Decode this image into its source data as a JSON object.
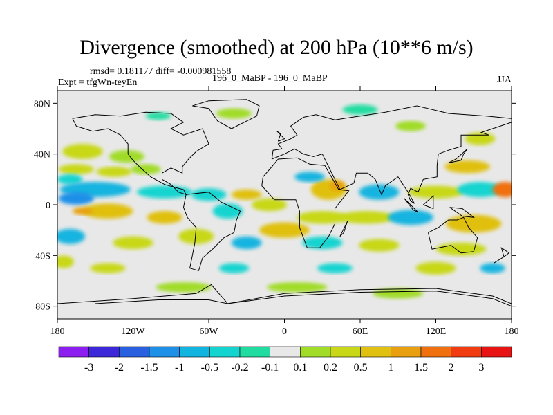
{
  "title": "Divergence (smoothed) at 200 hPa (10**6 m/s)",
  "stats": {
    "rmsd_label": "rmsd= 0.181177",
    "diff_label": "diff= -0.000981558"
  },
  "experiment": "Expt = tfgWn-teyEn",
  "case_label": "196_0_MaBP - 196_0_MaBP",
  "season": "JJA",
  "chart_data": {
    "type": "heatmap",
    "title": "Divergence (smoothed) at 200 hPa (10**6 m/s)",
    "x_axis": {
      "range": [
        -180,
        180
      ],
      "ticks": [
        -180,
        -120,
        -60,
        0,
        60,
        120,
        180
      ],
      "tick_labels": [
        "180",
        "120W",
        "60W",
        "0",
        "60E",
        "120E",
        "180"
      ]
    },
    "y_axis": {
      "range": [
        -90,
        90
      ],
      "ticks": [
        80,
        40,
        0,
        -40,
        -80
      ],
      "tick_labels": [
        "80N",
        "40N",
        "0",
        "40S",
        "80S"
      ]
    },
    "colorbar": {
      "levels": [
        "-3",
        "-2",
        "-1.5",
        "-1",
        "-0.5",
        "-0.2",
        "-0.1",
        "0.1",
        "0.2",
        "0.5",
        "1",
        "1.5",
        "2",
        "3"
      ],
      "colors": [
        "#8c1ff0",
        "#3c28d8",
        "#2860e0",
        "#1e90e8",
        "#12b4e0",
        "#14d4d0",
        "#20dca0",
        "#e8e8e8",
        "#a0dc28",
        "#c8d818",
        "#e0c010",
        "#e8a010",
        "#f07010",
        "#f03c10",
        "#e81414"
      ]
    },
    "blobs": [
      {
        "lon": -160,
        "lat": 42,
        "rx": 16,
        "ry": 6,
        "bin": 9
      },
      {
        "lon": -125,
        "lat": 38,
        "rx": 14,
        "ry": 5,
        "bin": 8
      },
      {
        "lon": -165,
        "lat": 28,
        "rx": 14,
        "ry": 4,
        "bin": 9
      },
      {
        "lon": -170,
        "lat": 20,
        "rx": 10,
        "ry": 4,
        "bin": 5
      },
      {
        "lon": -135,
        "lat": 26,
        "rx": 14,
        "ry": 4,
        "bin": 9
      },
      {
        "lon": -110,
        "lat": 28,
        "rx": 12,
        "ry": 4,
        "bin": 8
      },
      {
        "lon": -150,
        "lat": 12,
        "rx": 28,
        "ry": 6,
        "bin": 4
      },
      {
        "lon": -165,
        "lat": 5,
        "rx": 14,
        "ry": 5,
        "bin": 3
      },
      {
        "lon": -95,
        "lat": 10,
        "rx": 22,
        "ry": 5,
        "bin": 5
      },
      {
        "lon": -60,
        "lat": 8,
        "rx": 14,
        "ry": 5,
        "bin": 5
      },
      {
        "lon": -30,
        "lat": 8,
        "rx": 12,
        "ry": 4,
        "bin": 10
      },
      {
        "lon": -12,
        "lat": 0,
        "rx": 14,
        "ry": 5,
        "bin": 9
      },
      {
        "lon": 35,
        "lat": 12,
        "rx": 14,
        "ry": 8,
        "bin": 10
      },
      {
        "lon": 42,
        "lat": 15,
        "rx": 6,
        "ry": 4,
        "bin": 11
      },
      {
        "lon": 75,
        "lat": 10,
        "rx": 16,
        "ry": 6,
        "bin": 4
      },
      {
        "lon": 120,
        "lat": 10,
        "rx": 22,
        "ry": 5,
        "bin": 9
      },
      {
        "lon": 155,
        "lat": 12,
        "rx": 18,
        "ry": 6,
        "bin": 5
      },
      {
        "lon": 175,
        "lat": 12,
        "rx": 10,
        "ry": 6,
        "bin": 12
      },
      {
        "lon": -140,
        "lat": -5,
        "rx": 20,
        "ry": 6,
        "bin": 10
      },
      {
        "lon": -160,
        "lat": -5,
        "rx": 8,
        "ry": 3,
        "bin": 11
      },
      {
        "lon": -95,
        "lat": -10,
        "rx": 14,
        "ry": 5,
        "bin": 10
      },
      {
        "lon": -45,
        "lat": -5,
        "rx": 12,
        "ry": 6,
        "bin": 5
      },
      {
        "lon": 0,
        "lat": -20,
        "rx": 20,
        "ry": 6,
        "bin": 10
      },
      {
        "lon": 30,
        "lat": -10,
        "rx": 20,
        "ry": 5,
        "bin": 9
      },
      {
        "lon": 65,
        "lat": -10,
        "rx": 22,
        "ry": 5,
        "bin": 9
      },
      {
        "lon": 100,
        "lat": -10,
        "rx": 18,
        "ry": 6,
        "bin": 4
      },
      {
        "lon": 150,
        "lat": -15,
        "rx": 22,
        "ry": 7,
        "bin": 10
      },
      {
        "lon": -170,
        "lat": -25,
        "rx": 12,
        "ry": 6,
        "bin": 4
      },
      {
        "lon": -120,
        "lat": -30,
        "rx": 16,
        "ry": 5,
        "bin": 9
      },
      {
        "lon": -70,
        "lat": -25,
        "rx": 14,
        "ry": 6,
        "bin": 9
      },
      {
        "lon": -30,
        "lat": -30,
        "rx": 12,
        "ry": 5,
        "bin": 4
      },
      {
        "lon": 30,
        "lat": -30,
        "rx": 16,
        "ry": 5,
        "bin": 5
      },
      {
        "lon": 75,
        "lat": -32,
        "rx": 16,
        "ry": 5,
        "bin": 9
      },
      {
        "lon": 140,
        "lat": -35,
        "rx": 20,
        "ry": 5,
        "bin": 9
      },
      {
        "lon": -175,
        "lat": -45,
        "rx": 8,
        "ry": 5,
        "bin": 9
      },
      {
        "lon": -140,
        "lat": -50,
        "rx": 14,
        "ry": 4,
        "bin": 9
      },
      {
        "lon": -40,
        "lat": -50,
        "rx": 12,
        "ry": 4,
        "bin": 5
      },
      {
        "lon": 40,
        "lat": -50,
        "rx": 14,
        "ry": 4,
        "bin": 5
      },
      {
        "lon": 120,
        "lat": -50,
        "rx": 16,
        "ry": 5,
        "bin": 9
      },
      {
        "lon": 165,
        "lat": -50,
        "rx": 10,
        "ry": 4,
        "bin": 4
      },
      {
        "lon": -80,
        "lat": -65,
        "rx": 22,
        "ry": 4,
        "bin": 8
      },
      {
        "lon": 10,
        "lat": -65,
        "rx": 24,
        "ry": 4,
        "bin": 8
      },
      {
        "lon": 90,
        "lat": -70,
        "rx": 20,
        "ry": 4,
        "bin": 8
      },
      {
        "lon": -40,
        "lat": 72,
        "rx": 14,
        "ry": 4,
        "bin": 8
      },
      {
        "lon": 60,
        "lat": 75,
        "rx": 14,
        "ry": 4,
        "bin": 6
      },
      {
        "lon": 100,
        "lat": 62,
        "rx": 12,
        "ry": 4,
        "bin": 8
      },
      {
        "lon": -100,
        "lat": 70,
        "rx": 10,
        "ry": 3,
        "bin": 6
      },
      {
        "lon": 155,
        "lat": 52,
        "rx": 12,
        "ry": 5,
        "bin": 9
      },
      {
        "lon": 145,
        "lat": 30,
        "rx": 18,
        "ry": 5,
        "bin": 10
      },
      {
        "lon": 20,
        "lat": 22,
        "rx": 12,
        "ry": 4,
        "bin": 4
      }
    ],
    "coastlines": [
      [
        [
          -168,
          68
        ],
        [
          -150,
          71
        ],
        [
          -130,
          70
        ],
        [
          -110,
          73
        ],
        [
          -90,
          72
        ],
        [
          -80,
          65
        ],
        [
          -90,
          60
        ],
        [
          -80,
          55
        ],
        [
          -65,
          60
        ],
        [
          -60,
          48
        ],
        [
          -70,
          42
        ],
        [
          -76,
          36
        ],
        [
          -81,
          30
        ],
        [
          -81,
          25
        ],
        [
          -90,
          29
        ],
        [
          -97,
          25
        ],
        [
          -97,
          20
        ],
        [
          -90,
          16
        ],
        [
          -84,
          10
        ],
        [
          -78,
          8
        ],
        [
          -80,
          12
        ],
        [
          -88,
          14
        ],
        [
          -95,
          16
        ],
        [
          -106,
          22
        ],
        [
          -115,
          30
        ],
        [
          -120,
          35
        ],
        [
          -124,
          40
        ],
        [
          -124,
          48
        ],
        [
          -130,
          55
        ],
        [
          -140,
          60
        ],
        [
          -152,
          58
        ],
        [
          -165,
          62
        ],
        [
          -168,
          68
        ]
      ],
      [
        [
          -78,
          8
        ],
        [
          -60,
          10
        ],
        [
          -50,
          2
        ],
        [
          -35,
          -5
        ],
        [
          -38,
          -12
        ],
        [
          -40,
          -22
        ],
        [
          -48,
          -26
        ],
        [
          -57,
          -35
        ],
        [
          -65,
          -42
        ],
        [
          -68,
          -52
        ],
        [
          -75,
          -50
        ],
        [
          -73,
          -40
        ],
        [
          -71,
          -30
        ],
        [
          -70,
          -18
        ],
        [
          -77,
          -10
        ],
        [
          -80,
          -2
        ],
        [
          -78,
          8
        ]
      ],
      [
        [
          -18,
          15
        ],
        [
          -17,
          22
        ],
        [
          -10,
          30
        ],
        [
          -5,
          36
        ],
        [
          10,
          37
        ],
        [
          20,
          32
        ],
        [
          32,
          31
        ],
        [
          43,
          12
        ],
        [
          51,
          11
        ],
        [
          40,
          -3
        ],
        [
          40,
          -15
        ],
        [
          35,
          -25
        ],
        [
          28,
          -34
        ],
        [
          18,
          -34
        ],
        [
          12,
          -18
        ],
        [
          12,
          -5
        ],
        [
          9,
          4
        ],
        [
          -8,
          4
        ],
        [
          -18,
          15
        ]
      ],
      [
        [
          -10,
          36
        ],
        [
          -9,
          43
        ],
        [
          -2,
          44
        ],
        [
          -5,
          48
        ],
        [
          5,
          52
        ],
        [
          10,
          55
        ],
        [
          5,
          62
        ],
        [
          15,
          69
        ],
        [
          25,
          71
        ],
        [
          40,
          67
        ],
        [
          60,
          70
        ],
        [
          80,
          73
        ],
        [
          105,
          78
        ],
        [
          130,
          72
        ],
        [
          160,
          70
        ],
        [
          180,
          68
        ],
        [
          180,
          65
        ],
        [
          165,
          60
        ],
        [
          156,
          57
        ],
        [
          162,
          55
        ],
        [
          140,
          55
        ],
        [
          140,
          46
        ],
        [
          130,
          43
        ],
        [
          122,
          40
        ],
        [
          121,
          31
        ],
        [
          121,
          22
        ],
        [
          110,
          20
        ],
        [
          106,
          10
        ],
        [
          100,
          13
        ],
        [
          98,
          8
        ],
        [
          100,
          3
        ],
        [
          103,
          1
        ],
        [
          98,
          10
        ],
        [
          94,
          16
        ],
        [
          90,
          22
        ],
        [
          80,
          15
        ],
        [
          77,
          8
        ],
        [
          72,
          20
        ],
        [
          66,
          25
        ],
        [
          57,
          25
        ],
        [
          55,
          17
        ],
        [
          44,
          12
        ],
        [
          35,
          30
        ],
        [
          30,
          40
        ],
        [
          23,
          38
        ],
        [
          15,
          40
        ],
        [
          8,
          44
        ],
        [
          0,
          40
        ],
        [
          -10,
          36
        ]
      ],
      [
        [
          114,
          -22
        ],
        [
          122,
          -18
        ],
        [
          130,
          -12
        ],
        [
          137,
          -12
        ],
        [
          142,
          -10
        ],
        [
          146,
          -18
        ],
        [
          153,
          -26
        ],
        [
          150,
          -37
        ],
        [
          140,
          -38
        ],
        [
          132,
          -32
        ],
        [
          117,
          -35
        ],
        [
          114,
          -22
        ]
      ],
      [
        [
          -73,
          78
        ],
        [
          -60,
          82
        ],
        [
          -30,
          83
        ],
        [
          -20,
          78
        ],
        [
          -22,
          70
        ],
        [
          -42,
          60
        ],
        [
          -53,
          66
        ],
        [
          -60,
          76
        ],
        [
          -73,
          78
        ]
      ],
      [
        [
          -180,
          -78
        ],
        [
          -120,
          -74
        ],
        [
          -70,
          -70
        ],
        [
          -58,
          -63
        ],
        [
          -45,
          -78
        ],
        [
          0,
          -70
        ],
        [
          60,
          -67
        ],
        [
          120,
          -66
        ],
        [
          165,
          -72
        ],
        [
          180,
          -78
        ]
      ],
      [
        [
          44,
          -25
        ],
        [
          49,
          -15
        ],
        [
          50,
          -13
        ],
        [
          47,
          -22
        ],
        [
          44,
          -25
        ]
      ],
      [
        [
          -5,
          50
        ],
        [
          -3,
          56
        ],
        [
          -6,
          58
        ],
        [
          0,
          52
        ],
        [
          -5,
          50
        ]
      ],
      [
        [
          140,
          35
        ],
        [
          142,
          40
        ],
        [
          145,
          44
        ],
        [
          136,
          36
        ],
        [
          130,
          33
        ],
        [
          140,
          35
        ]
      ],
      [
        [
          95,
          5
        ],
        [
          106,
          -6
        ],
        [
          102,
          -4
        ],
        [
          95,
          5
        ]
      ],
      [
        [
          110,
          0
        ],
        [
          118,
          7
        ],
        [
          118,
          -3
        ],
        [
          110,
          0
        ]
      ],
      [
        [
          131,
          -2
        ],
        [
          141,
          -3
        ],
        [
          150,
          -10
        ],
        [
          141,
          -9
        ],
        [
          131,
          -2
        ]
      ],
      [
        [
          -150,
          -78
        ],
        [
          -100,
          -75
        ],
        [
          -60,
          -75
        ],
        [
          -45,
          -78
        ],
        [
          0,
          -72
        ],
        [
          60,
          -69
        ],
        [
          120,
          -68
        ],
        [
          165,
          -74
        ],
        [
          180,
          -80
        ]
      ],
      [
        [
          166,
          -46
        ],
        [
          174,
          -41
        ],
        [
          178,
          -38
        ],
        [
          172,
          -34
        ],
        [
          174,
          -41
        ],
        [
          166,
          -46
        ]
      ]
    ]
  }
}
